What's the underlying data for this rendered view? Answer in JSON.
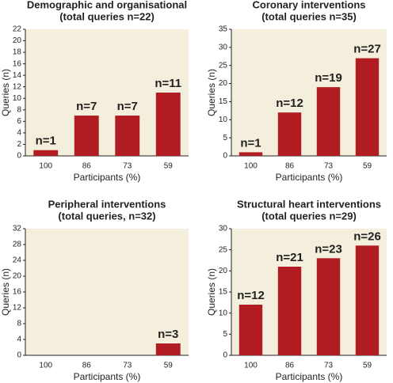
{
  "chart_data": [
    {
      "type": "bar",
      "title": "Demographic and organisational",
      "subtitle": "(total queries n=22)",
      "categories": [
        "100",
        "86",
        "73",
        "59"
      ],
      "values": [
        1,
        7,
        7,
        11
      ],
      "value_labels": [
        "n=1",
        "n=7",
        "n=7",
        "n=11"
      ],
      "color": "#b01c22",
      "ylim": [
        0,
        22
      ],
      "yticks": [
        0,
        2,
        4,
        6,
        8,
        10,
        12,
        14,
        16,
        18,
        20,
        22
      ],
      "xlabel": "Participants (%)",
      "ylabel": "Queries (n)"
    },
    {
      "type": "bar",
      "title": "Coronary interventions",
      "subtitle": "(total queries n=35)",
      "categories": [
        "100",
        "86",
        "73",
        "59"
      ],
      "values": [
        1,
        12,
        19,
        27
      ],
      "value_labels": [
        "n=1",
        "n=12",
        "n=19",
        "n=27"
      ],
      "color": "#b01c22",
      "ylim": [
        0,
        35
      ],
      "yticks": [
        0,
        5,
        10,
        15,
        20,
        25,
        30,
        35
      ],
      "xlabel": "Participants (%)",
      "ylabel": "Queries (n)"
    },
    {
      "type": "bar",
      "title": "Peripheral interventions",
      "subtitle": "(total queries, n=32)",
      "categories": [
        "100",
        "86",
        "73",
        "59"
      ],
      "values": [
        null,
        null,
        null,
        3
      ],
      "value_labels": [
        null,
        null,
        null,
        "n=3"
      ],
      "color": "#b01c22",
      "ylim": [
        0,
        32
      ],
      "yticks": [
        0,
        4,
        8,
        12,
        16,
        20,
        24,
        28,
        32
      ],
      "xlabel": "Participants (%)",
      "ylabel": "Queries (n)"
    },
    {
      "type": "bar",
      "title": "Structural heart interventions",
      "subtitle": "(total queries n=29)",
      "categories": [
        "100",
        "86",
        "73",
        "59"
      ],
      "values": [
        12,
        21,
        23,
        26
      ],
      "value_labels": [
        "n=12",
        "n=21",
        "n=23",
        "n=26"
      ],
      "color": "#b01c22",
      "ylim": [
        0,
        30
      ],
      "yticks": [
        0,
        5,
        10,
        15,
        20,
        25,
        30
      ],
      "xlabel": "Participants (%)",
      "ylabel": "Queries (n)"
    }
  ]
}
